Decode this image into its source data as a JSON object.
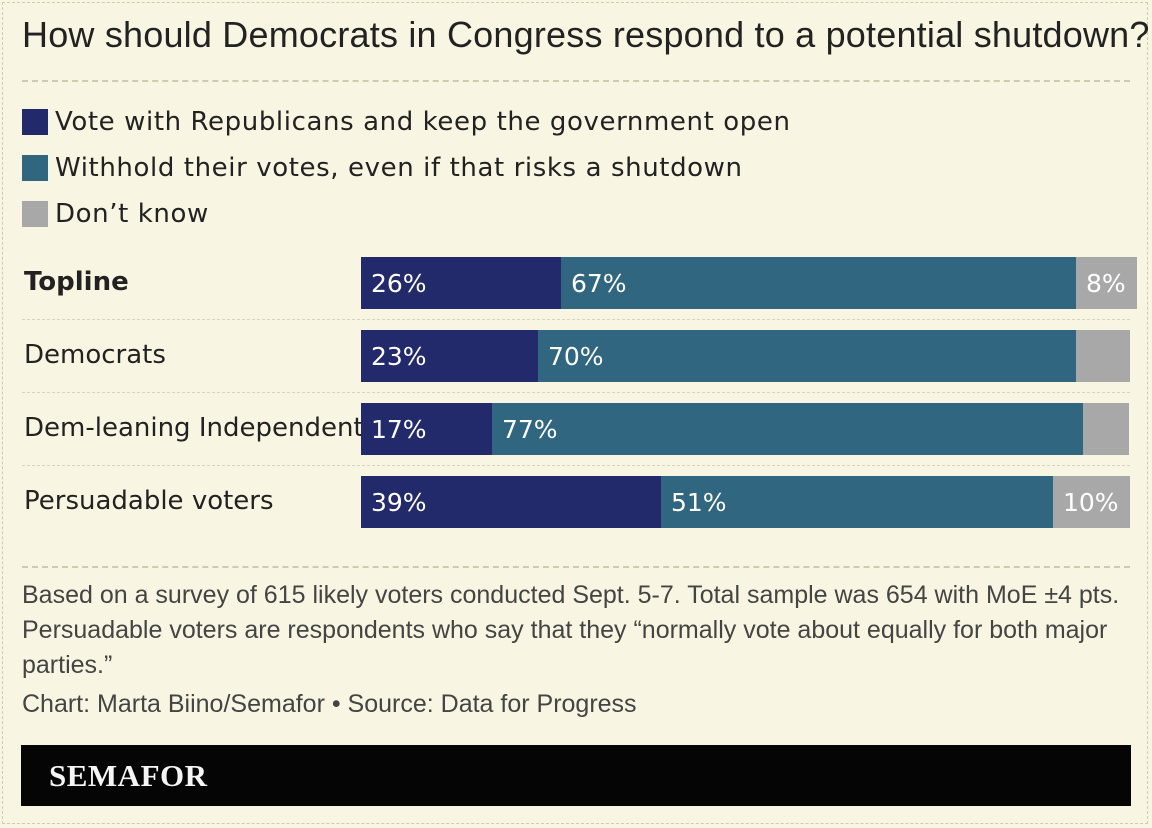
{
  "chart_data": {
    "type": "bar",
    "orientation": "horizontal",
    "stacked": true,
    "title": "How should Democrats in Congress respond to a potential shutdown?",
    "categories": [
      "Topline",
      "Democrats",
      "Dem-leaning Independents",
      "Persuadable voters"
    ],
    "series": [
      {
        "name": "Vote with Republicans and keep the government open",
        "color": "#232a6b",
        "values": [
          26,
          23,
          17,
          39
        ],
        "labels": [
          "26%",
          "23%",
          "17%",
          "39%"
        ]
      },
      {
        "name": "Withhold their votes, even if that risks a shutdown",
        "color": "#30667f",
        "values": [
          67,
          70,
          77,
          51
        ],
        "labels": [
          "67%",
          "70%",
          "77%",
          "51%"
        ]
      },
      {
        "name": "Don’t know",
        "color": "#a8a8a8",
        "values": [
          8,
          7,
          6,
          10
        ],
        "labels": [
          "8%",
          "",
          "",
          "10%"
        ]
      }
    ],
    "xlim": [
      0,
      100
    ],
    "notes": "Based on a survey of 615 likely voters conducted Sept. 5-7. Total sample was 654 with MoE ±4 pts. Persuadable voters are respondents who say that they “normally vote about equally for both major parties.”",
    "credit": "Chart: Marta Biino/Semafor • Source: Data for Progress"
  },
  "brand": "SEMAFOR"
}
